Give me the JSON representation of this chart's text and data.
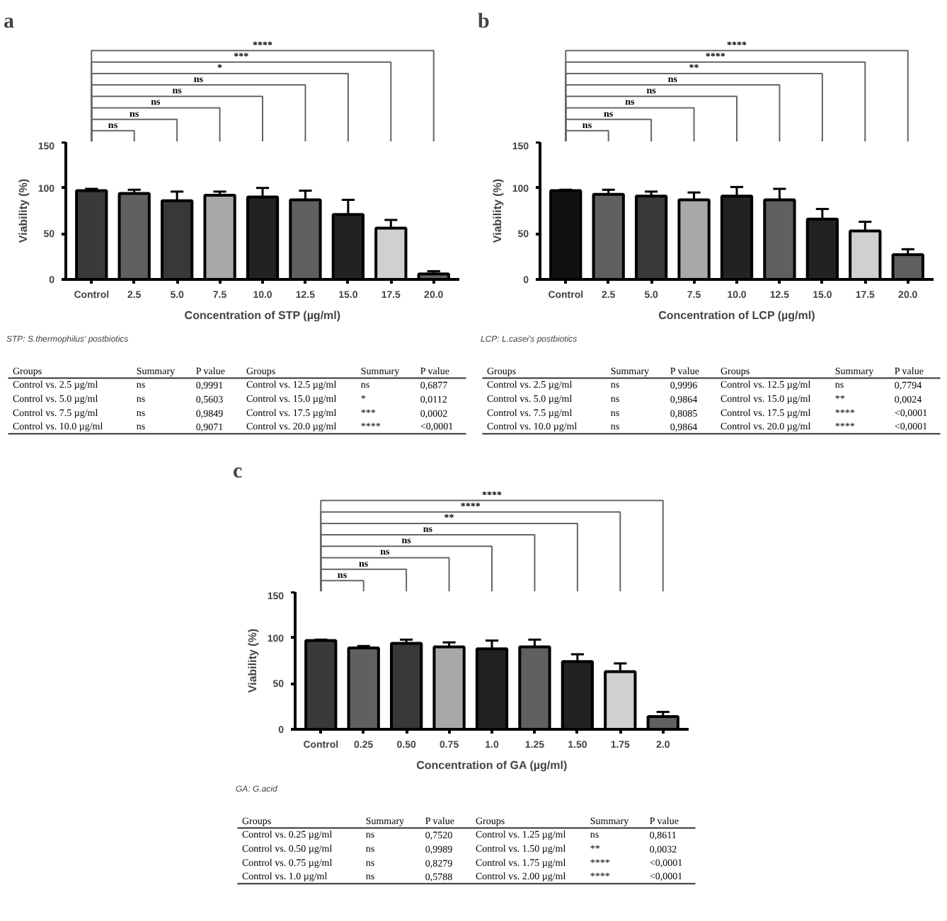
{
  "chart_data": [
    {
      "type": "bar",
      "title": "a",
      "xlabel": "Concentration of STP (µg/ml)",
      "ylabel": "Viability (%)",
      "categories": [
        "Control",
        "2.5",
        "5.0",
        "7.5",
        "10.0",
        "12.5",
        "15.0",
        "17.5",
        "20.0"
      ],
      "values": [
        97,
        94,
        86,
        92,
        90,
        87,
        71,
        56,
        6
      ],
      "colors": [
        "#3a3a3a",
        "#606060",
        "#383838",
        "#a8a8a8",
        "#222222",
        "#606060",
        "#222222",
        "#d0d0d0",
        "#606060"
      ],
      "errors": [
        [
          97,
          99
        ],
        [
          94,
          98
        ],
        [
          86,
          96
        ],
        [
          92,
          96
        ],
        [
          90,
          100
        ],
        [
          87,
          97
        ],
        [
          71,
          87
        ],
        [
          56,
          65
        ],
        [
          6,
          9
        ]
      ],
      "ylim": [
        0,
        150
      ],
      "yticks": [
        0,
        50,
        100,
        150
      ],
      "grid": false,
      "annotations": [
        "ns",
        "ns",
        "ns",
        "ns",
        "ns",
        "*",
        "***",
        "****",
        "STP: S.thermophilus' postbiotics"
      ]
    },
    {
      "type": "other",
      "annotations": [
        "Groups",
        "Summary",
        "P value",
        "Groups",
        "Summary",
        "P value",
        "Control vs. 2.5 µg/ml",
        "ns",
        "0,9991",
        "Control vs. 12.5 µg/ml",
        "ns",
        "0,6877",
        "Control vs. 5.0 µg/ml",
        "ns",
        "0,5603",
        "Control vs. 15.0 µg/ml",
        "*",
        "0,0112",
        "Control vs. 7.5 µg/ml",
        "ns",
        "0,9849",
        "Control vs. 17.5 µg/ml",
        "***",
        "0,0002",
        "Control vs. 10.0 µg/ml",
        "ns",
        "0,9071",
        "Control vs. 20.0 µg/ml",
        "****",
        "<0,0001"
      ]
    },
    {
      "type": "bar",
      "title": "b",
      "xlabel": "Concentration of LCP (µg/ml)",
      "ylabel": "Viability (%)",
      "categories": [
        "Control",
        "2.5",
        "5.0",
        "7.5",
        "10.0",
        "12.5",
        "15.0",
        "17.5",
        "20.0"
      ],
      "values": [
        97,
        93,
        91,
        87,
        91,
        87,
        66,
        53,
        27
      ],
      "colors": [
        "#111111",
        "#606060",
        "#383838",
        "#a8a8a8",
        "#222222",
        "#606060",
        "#222222",
        "#d0d0d0",
        "#606060"
      ],
      "errors": [
        [
          97,
          98
        ],
        [
          93,
          98
        ],
        [
          91,
          96
        ],
        [
          87,
          95
        ],
        [
          91,
          101
        ],
        [
          87,
          99
        ],
        [
          66,
          77
        ],
        [
          53,
          63
        ],
        [
          27,
          33
        ]
      ],
      "ylim": [
        0,
        150
      ],
      "yticks": [
        0,
        50,
        100,
        150
      ],
      "grid": false,
      "annotations": [
        "ns",
        "ns",
        "ns",
        "ns",
        "ns",
        "**",
        "****",
        "****",
        "LCP: L.casei's postbiotics"
      ]
    },
    {
      "type": "other",
      "annotations": [
        "Groups",
        "Summary",
        "P value",
        "Groups",
        "Summary",
        "P value",
        "Control vs. 2.5 µg/ml",
        "ns",
        "0,9996",
        "Control vs. 12.5 µg/ml",
        "ns",
        "0,7794",
        "Control vs. 5.0 µg/ml",
        "ns",
        "0,9864",
        "Control vs. 15.0 µg/ml",
        "**",
        "0,0024",
        "Control vs. 7.5 µg/ml",
        "ns",
        "0,8085",
        "Control vs. 17.5 µg/ml",
        "****",
        "<0,0001",
        "Control vs. 10.0 µg/ml",
        "ns",
        "0,9864",
        "Control vs. 20.0 µg/ml",
        "****",
        "<0,0001"
      ]
    },
    {
      "type": "bar",
      "title": "c",
      "xlabel": "Concentration of GA (µg/ml)",
      "ylabel": "Viability (%)",
      "categories": [
        "Control",
        "0.25",
        "0.50",
        "0.75",
        "1.0",
        "1.25",
        "1.50",
        "1.75",
        "2.0"
      ],
      "values": [
        97,
        89,
        94,
        90,
        88,
        90,
        74,
        63,
        14
      ],
      "colors": [
        "#3a3a3a",
        "#606060",
        "#383838",
        "#a8a8a8",
        "#222222",
        "#606060",
        "#222222",
        "#d0d0d0",
        "#606060"
      ],
      "errors": [
        [
          97,
          98
        ],
        [
          89,
          91
        ],
        [
          94,
          98
        ],
        [
          90,
          95
        ],
        [
          88,
          97
        ],
        [
          90,
          98
        ],
        [
          74,
          82
        ],
        [
          63,
          72
        ],
        [
          14,
          19
        ]
      ],
      "ylim": [
        0,
        150
      ],
      "yticks": [
        0,
        50,
        100,
        150
      ],
      "grid": false,
      "annotations": [
        "ns",
        "ns",
        "ns",
        "ns",
        "ns",
        "**",
        "****",
        "****",
        "GA: G.acid"
      ]
    },
    {
      "type": "other",
      "annotations": [
        "Groups",
        "Summary",
        "P value",
        "Groups",
        "Summary",
        "P value",
        "Control vs. 0.25 µg/ml",
        "ns",
        "0,7520",
        "Control vs. 1.25 µg/ml",
        "ns",
        "0,8611",
        "Control vs. 0.50 µg/ml",
        "ns",
        "0,9989",
        "Control vs. 1.50 µg/ml",
        "**",
        "0,0032",
        "Control vs. 0.75 µg/ml",
        "ns",
        "0,8279",
        "Control vs. 1.75 µg/ml",
        "****",
        "<0,0001",
        "Control vs. 1.0 µg/ml",
        "ns",
        "0,5788",
        "Control vs. 2.00 µg/ml",
        "****",
        "<0,0001"
      ]
    }
  ]
}
